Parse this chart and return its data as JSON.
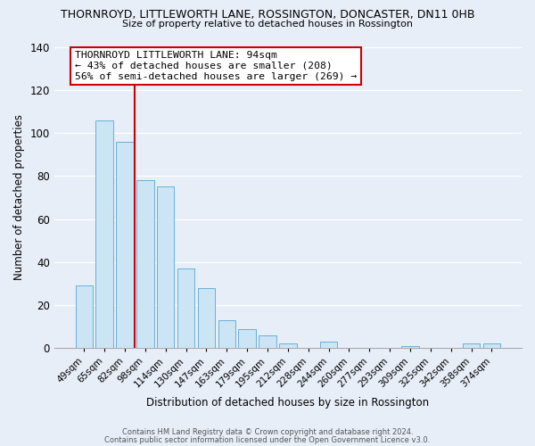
{
  "title": "THORNROYD, LITTLEWORTH LANE, ROSSINGTON, DONCASTER, DN11 0HB",
  "subtitle": "Size of property relative to detached houses in Rossington",
  "xlabel": "Distribution of detached houses by size in Rossington",
  "ylabel": "Number of detached properties",
  "footer_lines": [
    "Contains HM Land Registry data © Crown copyright and database right 2024.",
    "Contains public sector information licensed under the Open Government Licence v3.0."
  ],
  "categories": [
    "49sqm",
    "65sqm",
    "82sqm",
    "98sqm",
    "114sqm",
    "130sqm",
    "147sqm",
    "163sqm",
    "179sqm",
    "195sqm",
    "212sqm",
    "228sqm",
    "244sqm",
    "260sqm",
    "277sqm",
    "293sqm",
    "309sqm",
    "325sqm",
    "342sqm",
    "358sqm",
    "374sqm"
  ],
  "values": [
    29,
    106,
    96,
    78,
    75,
    37,
    28,
    13,
    9,
    6,
    2,
    0,
    3,
    0,
    0,
    0,
    1,
    0,
    0,
    2,
    2
  ],
  "bar_color": "#cce5f5",
  "bar_edge_color": "#6aafd6",
  "vline_color": "#cc0000",
  "annotation_title": "THORNROYD LITTLEWORTH LANE: 94sqm",
  "annotation_line1": "← 43% of detached houses are smaller (208)",
  "annotation_line2": "56% of semi-detached houses are larger (269) →",
  "annotation_box_color": "#ffffff",
  "annotation_box_edge": "#cc0000",
  "ylim": [
    0,
    140
  ],
  "yticks": [
    0,
    20,
    40,
    60,
    80,
    100,
    120,
    140
  ],
  "background_color": "#e8eef8"
}
